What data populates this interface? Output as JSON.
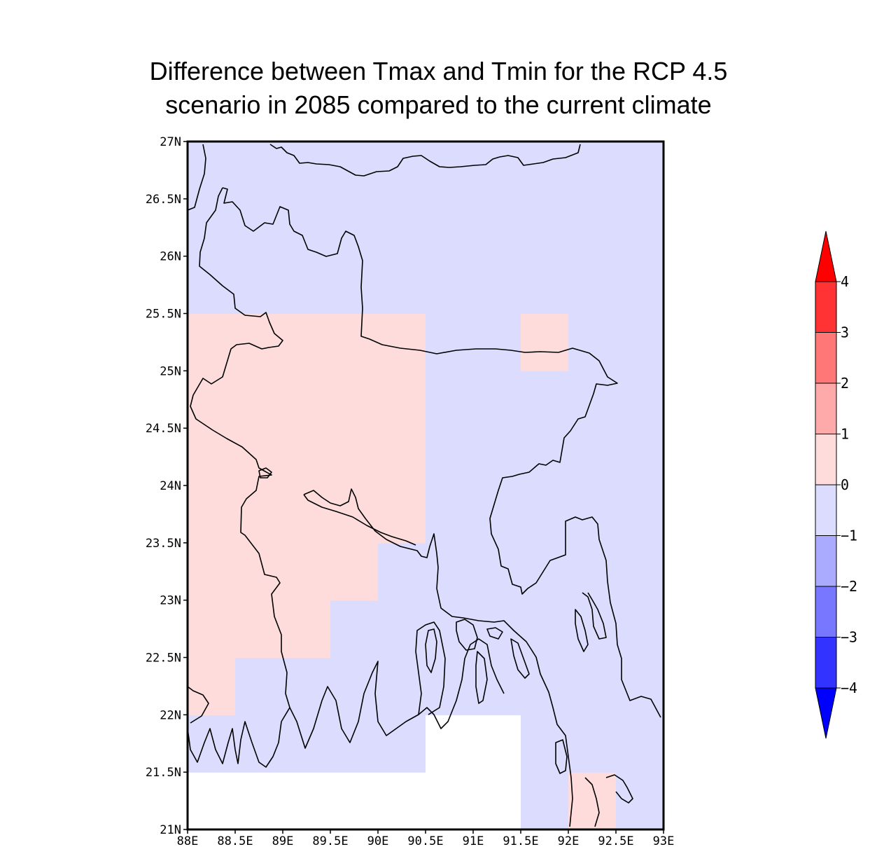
{
  "title": {
    "line1": "Difference between Tmax and Tmin for the RCP 4.5",
    "line2": "scenario in 2085 compared to the current climate"
  },
  "map": {
    "lon_range": [
      88,
      93
    ],
    "lat_range": [
      21,
      27
    ],
    "cell_size_deg": 0.5,
    "y_tick_labels": [
      "27N",
      "26.5N",
      "26N",
      "25.5N",
      "25N",
      "24.5N",
      "24N",
      "23.5N",
      "23N",
      "22.5N",
      "22N",
      "21.5N",
      "21N"
    ],
    "x_tick_labels": [
      "88E",
      "88.5E",
      "89E",
      "89.5E",
      "90E",
      "90.5E",
      "91E",
      "91.5E",
      "92E",
      "92.5E",
      "93E"
    ],
    "default_class": "0 to -1",
    "cells_0_to_1": [
      [
        88,
        25
      ],
      [
        88.5,
        25
      ],
      [
        89,
        25
      ],
      [
        89.5,
        25
      ],
      [
        90,
        25
      ],
      [
        88,
        24.5
      ],
      [
        88.5,
        24.5
      ],
      [
        89,
        24.5
      ],
      [
        89.5,
        24.5
      ],
      [
        90,
        24.5
      ],
      [
        88,
        24
      ],
      [
        88.5,
        24
      ],
      [
        89,
        24
      ],
      [
        89.5,
        24
      ],
      [
        90,
        24
      ],
      [
        88,
        23.5
      ],
      [
        88.5,
        23.5
      ],
      [
        89,
        23.5
      ],
      [
        89.5,
        23.5
      ],
      [
        90,
        23.5
      ],
      [
        88,
        23
      ],
      [
        88.5,
        23
      ],
      [
        89,
        23
      ],
      [
        89.5,
        23
      ],
      [
        88,
        22.5
      ],
      [
        88.5,
        22.5
      ],
      [
        89,
        22.5
      ],
      [
        88,
        22
      ],
      [
        91.5,
        25
      ],
      [
        92,
        21
      ]
    ],
    "cells_missing": [
      [
        88,
        21
      ],
      [
        88.5,
        21
      ],
      [
        89,
        21
      ],
      [
        89.5,
        21
      ],
      [
        90,
        21
      ],
      [
        90.5,
        21
      ],
      [
        91,
        21
      ],
      [
        90.5,
        21.5
      ],
      [
        91,
        21.5
      ]
    ]
  },
  "colorbar": {
    "labels": [
      "4",
      "3",
      "2",
      "1",
      "0",
      "−1",
      "−2",
      "−3",
      "−4"
    ],
    "colors": {
      "over": "#ff0000",
      "3 to 4": "#ff3333",
      "2 to 3": "#ff7777",
      "1 to 2": "#ffaaaa",
      "0 to 1": "#fedcdc",
      "0 to -1": "#dcdcfe",
      "-1 to -2": "#aaaaff",
      "-2 to -3": "#7777ff",
      "-3 to -4": "#3333ff",
      "under": "#0000ff"
    }
  }
}
